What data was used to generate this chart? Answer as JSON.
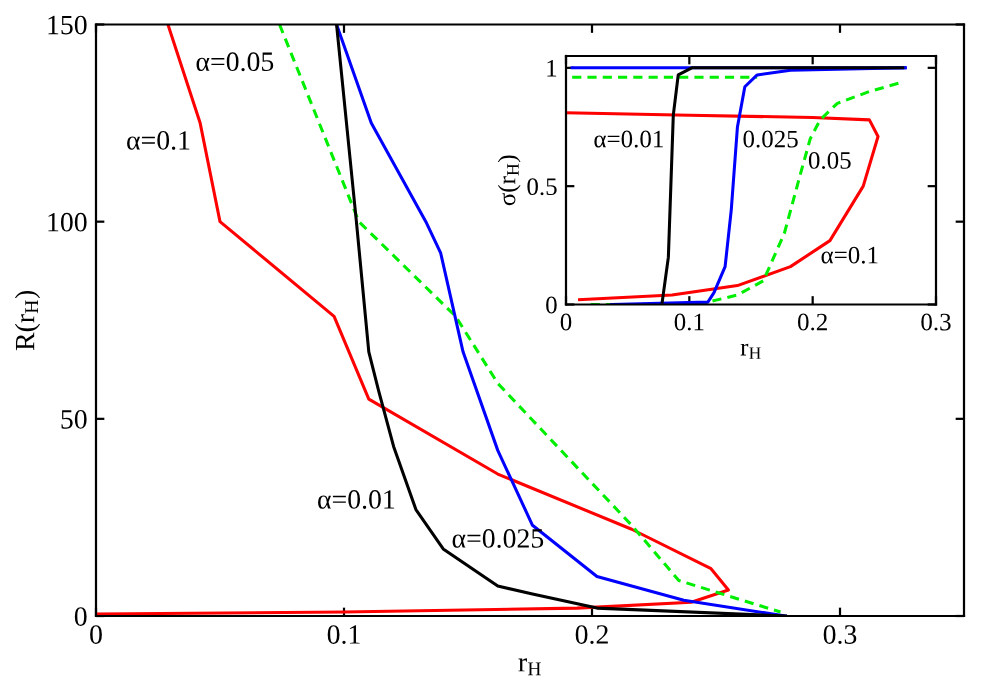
{
  "chart_data": [
    {
      "type": "line",
      "xlabel": "r$_{H}$",
      "ylabel": "R(r$_{H}$)",
      "xlim": [
        0,
        0.35
      ],
      "ylim": [
        0,
        150
      ],
      "xticks": [
        0,
        0.1,
        0.2,
        0.3
      ],
      "yticks": [
        0,
        50,
        100,
        150
      ],
      "grid": false,
      "legend": false,
      "marker": "none",
      "series": [
        {
          "color": "#ff0000",
          "line_style": "solid",
          "x": [
            0.029,
            0.042,
            0.05,
            0.096,
            0.11,
            0.162,
            0.216,
            0.248,
            0.255,
            0.24,
            0.194,
            0.1,
            0
          ],
          "values": [
            150,
            125,
            100,
            76,
            55,
            36,
            22,
            12,
            6.6,
            3.5,
            2,
            1,
            0.5
          ]
        },
        {
          "color": "#00ee00",
          "line_style": "dashed",
          "x": [
            0.074,
            0.106,
            0.145,
            0.162,
            0.216,
            0.235,
            0.276
          ],
          "values": [
            150,
            100,
            76,
            59,
            23,
            9,
            1
          ]
        },
        {
          "color": "#0000ff",
          "line_style": "solid",
          "x": [
            0.097,
            0.111,
            0.133,
            0.139,
            0.148,
            0.162,
            0.176,
            0.202,
            0.237,
            0.278
          ],
          "values": [
            150,
            125,
            100,
            92,
            67,
            42,
            23,
            10,
            4,
            0
          ]
        },
        {
          "color": "#000000",
          "line_style": "solid",
          "x": [
            0.097,
            0.105,
            0.11,
            0.114,
            0.12,
            0.129,
            0.14,
            0.162,
            0.176,
            0.202,
            0.278
          ],
          "values": [
            150,
            100,
            67,
            57,
            43,
            27,
            17,
            7.6,
            5.6,
            2,
            0
          ]
        }
      ],
      "annotations": [
        "α=0.1",
        "α=0.05",
        "α=0.01",
        "α=0.025"
      ]
    },
    {
      "type": "line",
      "xlabel": "r$_{H}$",
      "ylabel": "σ(r$_{H}$)",
      "xlim": [
        0,
        0.3
      ],
      "ylim": [
        0,
        1.05
      ],
      "xticks": [
        0,
        0.1,
        0.2,
        0.3
      ],
      "yticks": [
        0,
        0.5,
        1
      ],
      "grid": false,
      "legend": false,
      "marker": "none",
      "series": [
        {
          "color": "#ff0000",
          "line_style": "solid",
          "x": [
            0,
            0.1,
            0.2,
            0.246,
            0.253,
            0.241,
            0.214,
            0.182,
            0.139,
            0.086,
            0.011
          ],
          "values": [
            0.81,
            0.8,
            0.79,
            0.78,
            0.71,
            0.5,
            0.27,
            0.16,
            0.08,
            0.04,
            0.02
          ]
        },
        {
          "color": "#00ee00",
          "line_style": "dashed",
          "x": [
            0.005,
            0.155
          ],
          "values": [
            0.96,
            0.96
          ]
        },
        {
          "color": "#00ee00",
          "line_style": "dashed",
          "x": [
            0.02,
            0.107,
            0.139,
            0.16,
            0.177,
            0.19,
            0.198,
            0.206,
            0.22,
            0.246,
            0.273
          ],
          "values": [
            0,
            0,
            0.04,
            0.1,
            0.3,
            0.55,
            0.7,
            0.78,
            0.85,
            0.9,
            0.94
          ]
        },
        {
          "color": "#0000ff",
          "line_style": "solid",
          "x": [
            0.005,
            0.275
          ],
          "values": [
            1,
            1
          ]
        },
        {
          "color": "#0000ff",
          "line_style": "solid",
          "x": [
            0.037,
            0.115,
            0.12,
            0.129,
            0.134,
            0.139,
            0.145,
            0.155,
            0.182,
            0.275
          ],
          "values": [
            0,
            0.01,
            0.05,
            0.16,
            0.4,
            0.75,
            0.92,
            0.97,
            0.99,
            1
          ]
        },
        {
          "color": "#000000",
          "line_style": "solid",
          "x": [
            0.078,
            0.083,
            0.087,
            0.091,
            0.102,
            0.273
          ],
          "values": [
            0.01,
            0.2,
            0.8,
            0.97,
            1,
            1
          ]
        }
      ],
      "annotations": [
        "α=0.01",
        "0.025",
        "0.05",
        "α=0.1"
      ]
    }
  ]
}
